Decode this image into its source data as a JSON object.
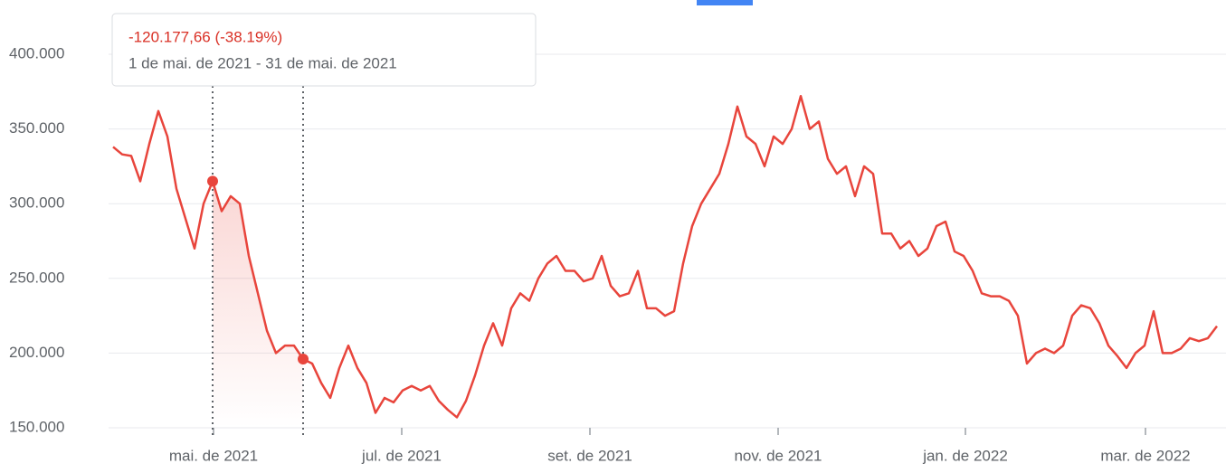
{
  "chart_data": {
    "type": "line",
    "tooltip": {
      "change": "-120.177,66 (-38.19%)",
      "range": "1 de mai. de 2021 - 31 de mai. de 2021"
    },
    "color": "#e8453c",
    "selection_range": [
      11,
      21
    ],
    "values": [
      338000,
      333000,
      332000,
      315000,
      340000,
      362000,
      345000,
      310000,
      290000,
      270000,
      300000,
      315000,
      295000,
      305000,
      300000,
      265000,
      240000,
      215000,
      200000,
      205000,
      205000,
      196000,
      193000,
      180000,
      170000,
      190000,
      205000,
      190000,
      180000,
      160000,
      170000,
      167000,
      175000,
      178000,
      175000,
      178000,
      168000,
      162000,
      157000,
      168000,
      185000,
      205000,
      220000,
      205000,
      230000,
      240000,
      235000,
      250000,
      260000,
      265000,
      255000,
      255000,
      248000,
      250000,
      265000,
      245000,
      238000,
      240000,
      255000,
      230000,
      230000,
      225000,
      228000,
      260000,
      285000,
      300000,
      310000,
      320000,
      340000,
      365000,
      345000,
      340000,
      325000,
      345000,
      340000,
      350000,
      372000,
      350000,
      355000,
      330000,
      320000,
      325000,
      305000,
      325000,
      320000,
      280000,
      280000,
      270000,
      275000,
      265000,
      270000,
      285000,
      288000,
      268000,
      265000,
      255000,
      240000,
      238000,
      238000,
      235000,
      225000,
      193000,
      200000,
      203000,
      200000,
      205000,
      225000,
      232000,
      230000,
      220000,
      205000,
      198000,
      190000,
      200000,
      205000,
      228000,
      200000,
      200000,
      203000,
      210000,
      208000,
      210000,
      218000
    ],
    "xlim": [
      0,
      122
    ],
    "xticks": [
      {
        "value": 11.1,
        "label": "mai. de 2021"
      },
      {
        "value": 31.9,
        "label": "jul. de 2021"
      },
      {
        "value": 52.7,
        "label": "set. de 2021"
      },
      {
        "value": 73.5,
        "label": "nov. de 2021"
      },
      {
        "value": 94.2,
        "label": "jan. de 2022"
      },
      {
        "value": 114.1,
        "label": "mar. de 2022"
      }
    ],
    "ylim": [
      150000,
      400000
    ],
    "yticks": [
      {
        "value": 150000,
        "label": "150.000"
      },
      {
        "value": 200000,
        "label": "200.000"
      },
      {
        "value": 250000,
        "label": "250.000"
      },
      {
        "value": 300000,
        "label": "300.000"
      },
      {
        "value": 350000,
        "label": "350.000"
      },
      {
        "value": 400000,
        "label": "400.000"
      }
    ],
    "grid": true
  }
}
